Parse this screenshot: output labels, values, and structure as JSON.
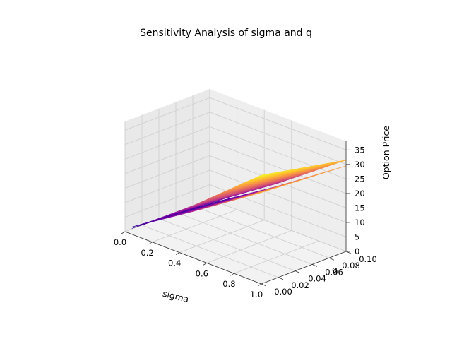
{
  "chart_data": {
    "type": "surface3d",
    "title": "Sensitivity Analysis of sigma and q",
    "xlabel": "sigma",
    "ylabel": "q",
    "zlabel": "Option Price",
    "xlim": [
      0.0,
      1.0
    ],
    "ylim": [
      0.0,
      0.1
    ],
    "zlim": [
      0,
      38
    ],
    "x_ticks": [
      "0.0",
      "0.2",
      "0.4",
      "0.6",
      "0.8",
      "1.0"
    ],
    "y_ticks": [
      "0.00",
      "0.02",
      "0.04",
      "0.06",
      "0.08",
      "0.10"
    ],
    "z_ticks": [
      "0",
      "5",
      "10",
      "15",
      "20",
      "25",
      "30",
      "35"
    ],
    "colormap": "plasma",
    "grid": true,
    "series": [
      {
        "sigma": [
          0.05,
          0.5,
          1.0
        ],
        "q": [
          0.0,
          0.1
        ],
        "price": [
          [
            2.0,
            18.0,
            37.5
          ],
          [
            0.5,
            14.5,
            31.5
          ]
        ]
      },
      {
        "sigma": [
          0.05,
          0.5,
          1.0
        ],
        "q": [
          0.0,
          0.1
        ],
        "price": [
          [
            2.5,
            16.0,
            31.5
          ],
          [
            0.0,
            13.5,
            29.5
          ]
        ]
      }
    ]
  }
}
